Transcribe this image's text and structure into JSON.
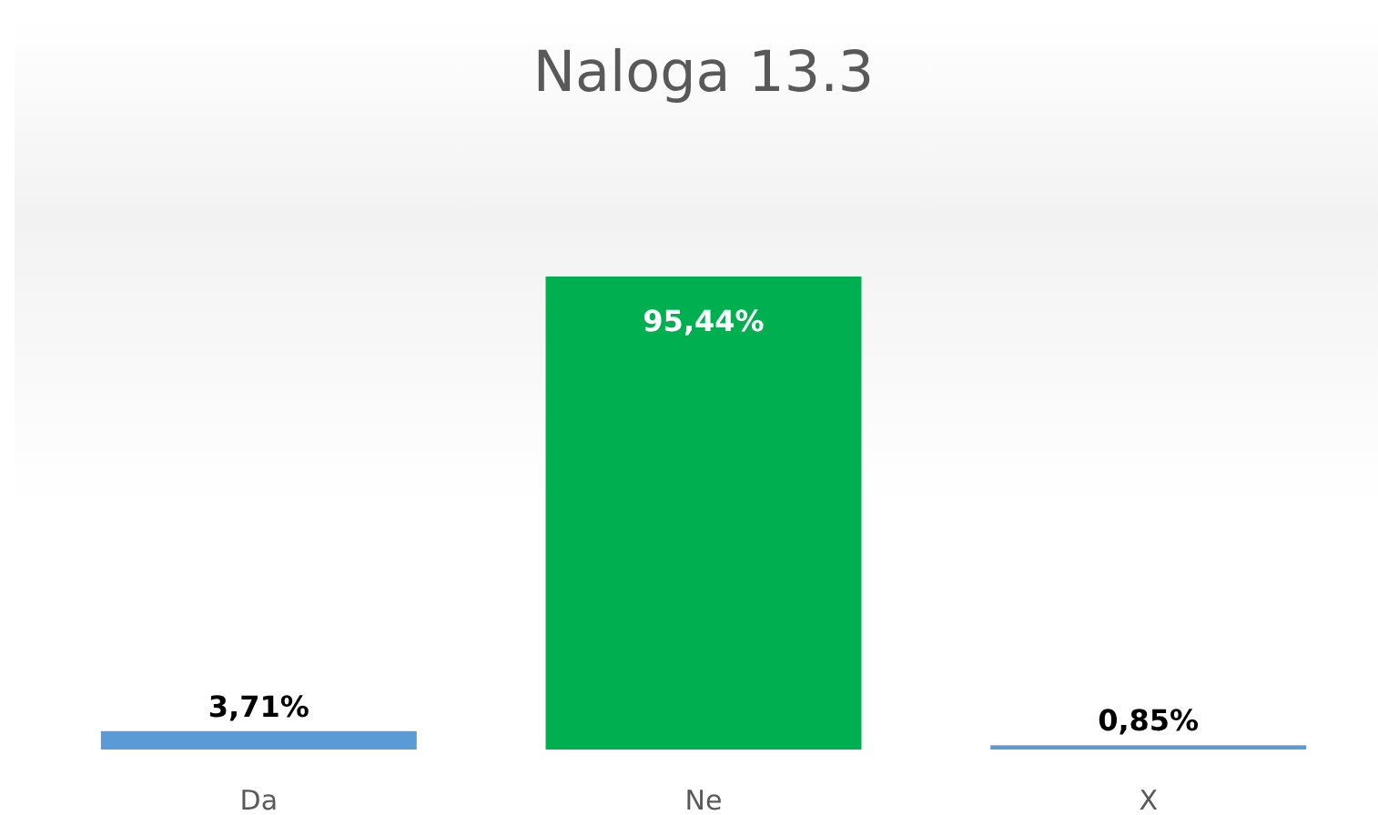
{
  "chart_data": {
    "type": "bar",
    "title": "Naloga 13.3",
    "categories": [
      "Da",
      "Ne",
      "X"
    ],
    "values": [
      3.71,
      95.44,
      0.85
    ],
    "value_labels": [
      "3,71%",
      "95,44%",
      "0,85%"
    ],
    "colors": [
      "#5b9bd5",
      "#00b050",
      "#5b9bd5"
    ]
  }
}
